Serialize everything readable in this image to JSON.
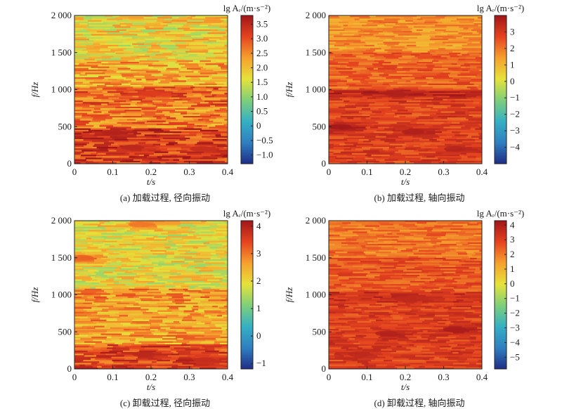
{
  "figure": {
    "colormap": [
      "#1f2d86",
      "#2f7fc0",
      "#35b0c4",
      "#7fcf7a",
      "#e6e23a",
      "#f6a02e",
      "#e5431f",
      "#a0161a"
    ]
  },
  "chart_data": [
    {
      "type": "heatmap",
      "caption": "(a) 加载过程, 径向振动",
      "xlabel": "t/s",
      "ylabel": "f/Hz",
      "xlim": [
        0,
        0.4
      ],
      "ylim": [
        0,
        2000
      ],
      "xticks": [
        0,
        0.1,
        0.2,
        0.3,
        0.4
      ],
      "xtick_labels": [
        "0",
        "0.1",
        "0.2",
        "0.3",
        "0.4"
      ],
      "yticks": [
        0,
        500,
        1000,
        1500,
        2000
      ],
      "ytick_labels": [
        "0",
        "500",
        "1 000",
        "1 500",
        "2 000"
      ],
      "colorbar": {
        "label": "lg Aᵣ/(m·s⁻²)",
        "range": [
          -1.3,
          3.8
        ],
        "ticks": [
          -1.0,
          -0.5,
          0,
          0.5,
          1.0,
          1.5,
          2.0,
          2.5,
          3.0,
          3.5
        ],
        "tick_labels": [
          "−1.0",
          "−0.5",
          "0",
          "0.5",
          "1.0",
          "1.5",
          "2.0",
          "2.5",
          "3.0",
          "3.5"
        ]
      },
      "bands": [
        {
          "f_range": [
            0,
            480
          ],
          "level": 3.2
        },
        {
          "f_range": [
            480,
            800
          ],
          "level": 2.6
        },
        {
          "f_range": [
            800,
            1050
          ],
          "level": 2.8
        },
        {
          "f_range": [
            1050,
            1400
          ],
          "level": 2.2
        },
        {
          "f_range": [
            1400,
            2000
          ],
          "level": 1.8
        }
      ],
      "hotspots": [
        {
          "t": 0.1,
          "f": 420,
          "level": 3.6
        },
        {
          "t": 0.15,
          "f": 220,
          "level": 3.5
        },
        {
          "t": 0.33,
          "f": 200,
          "level": 3.4
        },
        {
          "t": 0.2,
          "f": 950,
          "level": 3.2
        }
      ]
    },
    {
      "type": "heatmap",
      "caption": "(b) 加载过程, 轴向振动",
      "xlabel": "t/s",
      "ylabel": "f/Hz",
      "xlim": [
        0,
        0.4
      ],
      "ylim": [
        0,
        2000
      ],
      "xticks": [
        0,
        0.1,
        0.2,
        0.3,
        0.4
      ],
      "xtick_labels": [
        "0",
        "0.1",
        "0.2",
        "0.3",
        "0.4"
      ],
      "yticks": [
        0,
        500,
        1000,
        1500,
        2000
      ],
      "ytick_labels": [
        "0",
        "500",
        "1 000",
        "1 500",
        "2 000"
      ],
      "colorbar": {
        "label": "lg Aᵣ/(m·s⁻²)",
        "range": [
          -5,
          4
        ],
        "ticks": [
          -4,
          -3,
          -2,
          -1,
          0,
          1,
          2,
          3
        ],
        "tick_labels": [
          "−4",
          "−3",
          "−2",
          "−1",
          "0",
          "1",
          "2",
          "3"
        ]
      },
      "bands": [
        {
          "f_range": [
            0,
            900
          ],
          "level": 2.8
        },
        {
          "f_range": [
            900,
            1000
          ],
          "level": 3.4
        },
        {
          "f_range": [
            1000,
            1500
          ],
          "level": 2.3
        },
        {
          "f_range": [
            1500,
            2000
          ],
          "level": 1.6
        }
      ],
      "hotspots": [
        {
          "t": 0.03,
          "f": 500,
          "level": 3.9
        },
        {
          "t": 0.22,
          "f": 430,
          "level": 3.7
        },
        {
          "t": 0.33,
          "f": 200,
          "level": 3.6
        },
        {
          "t": 0.17,
          "f": 950,
          "level": 3.7
        }
      ]
    },
    {
      "type": "heatmap",
      "caption": "(c) 卸载过程, 径向振动",
      "xlabel": "t/s",
      "ylabel": "f/Hz",
      "xlim": [
        0,
        0.4
      ],
      "ylim": [
        0,
        2000
      ],
      "xticks": [
        0,
        0.1,
        0.2,
        0.3,
        0.4
      ],
      "xtick_labels": [
        "0",
        "0.1",
        "0.2",
        "0.3",
        "0.4"
      ],
      "yticks": [
        0,
        500,
        1000,
        1500,
        2000
      ],
      "ytick_labels": [
        "0",
        "500",
        "1 000",
        "1 500",
        "2 000"
      ],
      "colorbar": {
        "label": "lg Aᵣ/(m·s⁻²)",
        "range": [
          -1.2,
          4.2
        ],
        "ticks": [
          -1,
          0,
          1,
          2,
          3,
          4
        ],
        "tick_labels": [
          "−1",
          "0",
          "1",
          "2",
          "3",
          "4"
        ]
      },
      "bands": [
        {
          "f_range": [
            0,
            350
          ],
          "level": 3.4
        },
        {
          "f_range": [
            350,
            800
          ],
          "level": 2.6
        },
        {
          "f_range": [
            800,
            1100
          ],
          "level": 2.7
        },
        {
          "f_range": [
            1100,
            2000
          ],
          "level": 2.0
        }
      ],
      "hotspots": [
        {
          "t": 0.18,
          "f": 200,
          "level": 3.9
        },
        {
          "t": 0.34,
          "f": 120,
          "level": 3.8
        },
        {
          "t": 0.02,
          "f": 1500,
          "level": 3.2
        },
        {
          "t": 0.17,
          "f": 1950,
          "level": 3.0
        }
      ]
    },
    {
      "type": "heatmap",
      "caption": "(d) 卸载过程, 轴向振动",
      "xlabel": "t/s",
      "ylabel": "f/Hz",
      "xlim": [
        0,
        0.4
      ],
      "ylim": [
        0,
        2000
      ],
      "xticks": [
        0,
        0.1,
        0.2,
        0.3,
        0.4
      ],
      "xtick_labels": [
        "0",
        "0.1",
        "0.2",
        "0.3",
        "0.4"
      ],
      "yticks": [
        0,
        500,
        1000,
        1500,
        2000
      ],
      "ytick_labels": [
        "0",
        "500",
        "1 000",
        "1 500",
        "2 000"
      ],
      "colorbar": {
        "label": "lg Aᵣ/(m·s⁻²)",
        "range": [
          -5.8,
          4.3
        ],
        "ticks": [
          -5,
          -4,
          -3,
          -2,
          -1,
          0,
          1,
          2,
          3,
          4
        ],
        "tick_labels": [
          "−5",
          "−4",
          "−3",
          "−2",
          "−1",
          "0",
          "1",
          "2",
          "3",
          "4"
        ]
      },
      "bands": [
        {
          "f_range": [
            0,
            900
          ],
          "level": 3.0
        },
        {
          "f_range": [
            900,
            1050
          ],
          "level": 3.4
        },
        {
          "f_range": [
            1050,
            1500
          ],
          "level": 2.6
        },
        {
          "f_range": [
            1500,
            2000
          ],
          "level": 2.1
        }
      ],
      "hotspots": [
        {
          "t": 0.33,
          "f": 530,
          "level": 4.1
        },
        {
          "t": 0.15,
          "f": 480,
          "level": 3.9
        },
        {
          "t": 0.08,
          "f": 200,
          "level": 3.7
        },
        {
          "t": 0.2,
          "f": 950,
          "level": 3.7
        }
      ]
    }
  ]
}
